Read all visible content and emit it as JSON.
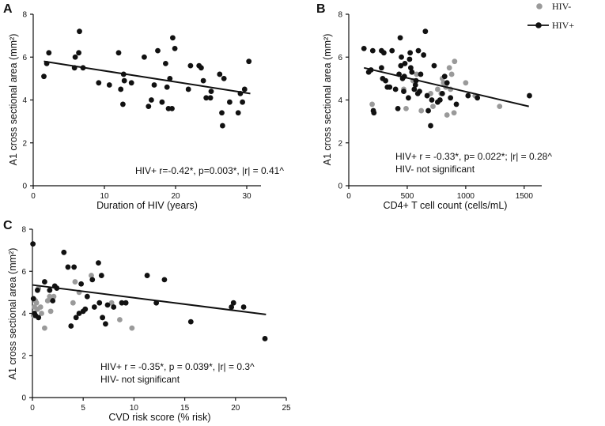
{
  "colors": {
    "hiv_pos": "#111111",
    "hiv_neg": "#9a9a9a",
    "axis": "#111111"
  },
  "legend": {
    "hiv_neg": "HIV-",
    "hiv_pos": "HIV+"
  },
  "chart_data": [
    {
      "panel": "A",
      "type": "scatter",
      "xlabel": "Duration of HIV (years)",
      "ylabel": "A1 cross sectional area (mm²)",
      "xlim": [
        0,
        32
      ],
      "ylim": [
        0,
        8
      ],
      "xticks": [
        0,
        10,
        20,
        30
      ],
      "yticks": [
        0,
        2,
        4,
        6,
        8
      ],
      "annotations": [
        "HIV+ r=-0.42*, p=0.003*, |r| = 0.41^"
      ],
      "fit": {
        "x": [
          1.5,
          30.5
        ],
        "y": [
          5.8,
          4.3
        ]
      },
      "series": [
        {
          "name": "HIV+",
          "points": [
            [
              1.5,
              5.1
            ],
            [
              1.9,
              5.7
            ],
            [
              2.2,
              6.2
            ],
            [
              5.8,
              5.5
            ],
            [
              5.9,
              6.0
            ],
            [
              6.4,
              6.2
            ],
            [
              6.5,
              7.2
            ],
            [
              7.0,
              5.5
            ],
            [
              9.2,
              4.8
            ],
            [
              10.7,
              4.7
            ],
            [
              12.0,
              6.2
            ],
            [
              12.3,
              4.5
            ],
            [
              12.6,
              3.8
            ],
            [
              12.7,
              5.2
            ],
            [
              12.8,
              4.9
            ],
            [
              13.8,
              4.8
            ],
            [
              15.6,
              6.0
            ],
            [
              16.2,
              3.7
            ],
            [
              16.6,
              4.0
            ],
            [
              17.0,
              4.7
            ],
            [
              17.5,
              6.3
            ],
            [
              18.1,
              3.9
            ],
            [
              18.6,
              5.7
            ],
            [
              18.8,
              4.6
            ],
            [
              19.0,
              3.6
            ],
            [
              19.2,
              5.0
            ],
            [
              19.5,
              3.6
            ],
            [
              19.6,
              6.9
            ],
            [
              19.9,
              6.4
            ],
            [
              21.8,
              4.5
            ],
            [
              22.1,
              5.6
            ],
            [
              23.3,
              5.6
            ],
            [
              23.6,
              5.5
            ],
            [
              23.9,
              4.9
            ],
            [
              24.3,
              4.1
            ],
            [
              24.9,
              4.1
            ],
            [
              25.0,
              4.4
            ],
            [
              26.2,
              5.2
            ],
            [
              26.5,
              3.4
            ],
            [
              26.6,
              2.8
            ],
            [
              26.8,
              5.0
            ],
            [
              27.6,
              3.9
            ],
            [
              28.8,
              3.4
            ],
            [
              29.1,
              4.3
            ],
            [
              29.4,
              3.9
            ],
            [
              29.7,
              4.5
            ],
            [
              30.3,
              5.8
            ]
          ]
        }
      ]
    },
    {
      "panel": "B",
      "type": "scatter",
      "xlabel": "CD4+ T cell count (cells/mL)",
      "ylabel": "A1 cross sectional area (mm²)",
      "xlim": [
        0,
        1650
      ],
      "ylim": [
        0,
        8
      ],
      "xticks": [
        0,
        500,
        1000,
        1500
      ],
      "yticks": [
        0,
        2,
        4,
        6,
        8
      ],
      "annotations": [
        "HIV+ r = -0.33*, p= 0.022*; |r| = 0.28^",
        "HIV-  not significant"
      ],
      "fit": {
        "x": [
          130,
          1540
        ],
        "y": [
          5.5,
          3.7
        ]
      },
      "series": [
        {
          "name": "HIV+",
          "points": [
            [
              130,
              6.4
            ],
            [
              170,
              5.3
            ],
            [
              190,
              5.4
            ],
            [
              205,
              6.3
            ],
            [
              210,
              3.5
            ],
            [
              215,
              3.4
            ],
            [
              280,
              5.5
            ],
            [
              280,
              6.3
            ],
            [
              290,
              5.0
            ],
            [
              300,
              6.2
            ],
            [
              315,
              4.9
            ],
            [
              330,
              4.6
            ],
            [
              350,
              4.6
            ],
            [
              370,
              6.3
            ],
            [
              400,
              4.5
            ],
            [
              420,
              3.6
            ],
            [
              430,
              5.2
            ],
            [
              440,
              6.9
            ],
            [
              445,
              5.6
            ],
            [
              450,
              6.0
            ],
            [
              460,
              5.0
            ],
            [
              470,
              4.4
            ],
            [
              475,
              5.1
            ],
            [
              480,
              5.7
            ],
            [
              510,
              4.1
            ],
            [
              520,
              5.9
            ],
            [
              525,
              6.2
            ],
            [
              530,
              5.5
            ],
            [
              540,
              5.3
            ],
            [
              560,
              4.5
            ],
            [
              570,
              4.7
            ],
            [
              575,
              4.9
            ],
            [
              590,
              4.3
            ],
            [
              595,
              6.3
            ],
            [
              605,
              4.4
            ],
            [
              615,
              5.2
            ],
            [
              640,
              6.1
            ],
            [
              655,
              7.2
            ],
            [
              670,
              4.2
            ],
            [
              680,
              3.5
            ],
            [
              700,
              2.8
            ],
            [
              710,
              4.0
            ],
            [
              730,
              5.6
            ],
            [
              760,
              3.9
            ],
            [
              780,
              4.0
            ],
            [
              800,
              4.3
            ],
            [
              820,
              5.1
            ],
            [
              840,
              4.8
            ],
            [
              870,
              4.1
            ],
            [
              920,
              3.8
            ],
            [
              1020,
              4.2
            ],
            [
              1100,
              4.1
            ],
            [
              1545,
              4.2
            ]
          ]
        },
        {
          "name": "HIV-",
          "points": [
            [
              200,
              3.8
            ],
            [
              470,
              4.5
            ],
            [
              490,
              3.6
            ],
            [
              550,
              4.9
            ],
            [
              580,
              5.2
            ],
            [
              620,
              3.5
            ],
            [
              700,
              4.3
            ],
            [
              720,
              3.7
            ],
            [
              760,
              4.5
            ],
            [
              790,
              4.3
            ],
            [
              800,
              5.0
            ],
            [
              810,
              4.8
            ],
            [
              830,
              4.6
            ],
            [
              840,
              3.3
            ],
            [
              860,
              5.5
            ],
            [
              870,
              4.5
            ],
            [
              880,
              5.2
            ],
            [
              900,
              3.4
            ],
            [
              905,
              5.8
            ],
            [
              1000,
              4.8
            ],
            [
              1080,
              4.2
            ],
            [
              1290,
              3.7
            ]
          ]
        }
      ]
    },
    {
      "panel": "C",
      "type": "scatter",
      "xlabel": "CVD risk score (% risk)",
      "ylabel": "A1 cross sectional area (mm²)",
      "xlim": [
        0,
        25
      ],
      "ylim": [
        0,
        8
      ],
      "xticks": [
        0,
        5,
        10,
        15,
        20,
        25
      ],
      "yticks": [
        0,
        2,
        4,
        6,
        8
      ],
      "annotations": [
        "HIV+ r = -0.35*, p = 0.039*, |r| = 0.3^",
        "HIV-  not significant"
      ],
      "fit": {
        "x": [
          0,
          23
        ],
        "y": [
          5.35,
          3.95
        ]
      },
      "series": [
        {
          "name": "HIV+",
          "points": [
            [
              0.05,
              7.3
            ],
            [
              0.1,
              4.7
            ],
            [
              0.2,
              4.0
            ],
            [
              0.3,
              3.9
            ],
            [
              0.5,
              5.1
            ],
            [
              0.6,
              3.8
            ],
            [
              1.2,
              5.5
            ],
            [
              1.7,
              5.1
            ],
            [
              2.0,
              4.6
            ],
            [
              2.2,
              5.3
            ],
            [
              2.4,
              5.2
            ],
            [
              3.1,
              6.9
            ],
            [
              3.5,
              6.2
            ],
            [
              3.8,
              3.4
            ],
            [
              4.1,
              6.2
            ],
            [
              4.3,
              3.8
            ],
            [
              4.6,
              4.0
            ],
            [
              4.8,
              5.4
            ],
            [
              5.0,
              4.1
            ],
            [
              5.2,
              4.2
            ],
            [
              5.4,
              4.8
            ],
            [
              5.9,
              5.6
            ],
            [
              6.1,
              4.3
            ],
            [
              6.5,
              6.4
            ],
            [
              6.6,
              4.5
            ],
            [
              6.8,
              5.8
            ],
            [
              6.9,
              3.8
            ],
            [
              7.2,
              3.5
            ],
            [
              7.4,
              4.4
            ],
            [
              8.0,
              4.3
            ],
            [
              8.8,
              4.5
            ],
            [
              9.2,
              4.5
            ],
            [
              11.3,
              5.8
            ],
            [
              12.2,
              4.5
            ],
            [
              13.0,
              5.6
            ],
            [
              15.6,
              3.6
            ],
            [
              19.6,
              4.3
            ],
            [
              19.8,
              4.5
            ],
            [
              20.8,
              4.3
            ],
            [
              22.9,
              2.8
            ]
          ]
        },
        {
          "name": "HIV-",
          "points": [
            [
              0.1,
              3.9
            ],
            [
              0.2,
              4.3
            ],
            [
              0.3,
              4.6
            ],
            [
              0.4,
              4.5
            ],
            [
              0.5,
              4.2
            ],
            [
              0.6,
              5.2
            ],
            [
              0.8,
              4.3
            ],
            [
              0.9,
              4.0
            ],
            [
              1.2,
              3.3
            ],
            [
              1.5,
              4.6
            ],
            [
              1.7,
              4.8
            ],
            [
              1.8,
              4.1
            ],
            [
              2.1,
              4.8
            ],
            [
              4.0,
              4.5
            ],
            [
              4.2,
              5.5
            ],
            [
              4.6,
              5.0
            ],
            [
              5.8,
              5.8
            ],
            [
              6.9,
              3.8
            ],
            [
              7.8,
              4.5
            ],
            [
              8.6,
              3.7
            ],
            [
              9.8,
              3.3
            ]
          ]
        }
      ]
    }
  ]
}
